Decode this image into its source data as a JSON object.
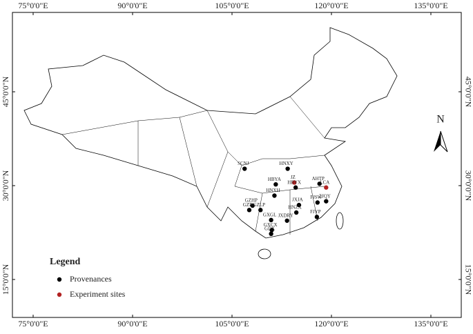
{
  "map": {
    "lon_ticks": [
      {
        "value": 75,
        "label": "75°0'0\"E"
      },
      {
        "value": 90,
        "label": "90°0'0\"E"
      },
      {
        "value": 105,
        "label": "105°0'0\"E"
      },
      {
        "value": 120,
        "label": "120°0'0\"E"
      },
      {
        "value": 135,
        "label": "135°0'0\"E"
      }
    ],
    "lat_ticks": [
      {
        "value": 15,
        "label": "15°0'0\"N"
      },
      {
        "value": 30,
        "label": "30°0'0\"N"
      },
      {
        "value": 45,
        "label": "45°0'0\"N"
      }
    ],
    "north": "N",
    "legend": {
      "title": "Legend",
      "items": [
        {
          "label": "Provenances",
          "color": "#000000"
        },
        {
          "label": "Experiment sites",
          "color": "#b22222"
        }
      ]
    },
    "points": [
      {
        "label": "SCNJ",
        "lon": 106.9,
        "lat": 32.7,
        "kind": 0
      },
      {
        "label": "HNXY",
        "lon": 113.4,
        "lat": 32.7,
        "kind": 0
      },
      {
        "label": "HBYA",
        "lon": 111.6,
        "lat": 30.2,
        "kind": 0
      },
      {
        "label": "JZ",
        "lon": 114.4,
        "lat": 30.5,
        "kind": 1
      },
      {
        "label": "HBYX",
        "lon": 114.6,
        "lat": 29.7,
        "kind": 0
      },
      {
        "label": "AHTP",
        "lon": 118.2,
        "lat": 30.3,
        "kind": 0
      },
      {
        "label": "LCA",
        "lon": 119.2,
        "lat": 29.7,
        "kind": 1
      },
      {
        "label": "HNXH",
        "lon": 111.4,
        "lat": 28.4,
        "kind": 0
      },
      {
        "label": "GZHP",
        "lon": 108.1,
        "lat": 26.8,
        "kind": 0
      },
      {
        "label": "GZD",
        "lon": 107.6,
        "lat": 26.1,
        "kind": 0
      },
      {
        "label": "GZLP",
        "lon": 109.3,
        "lat": 26.1,
        "kind": 0
      },
      {
        "label": "ZJQY",
        "lon": 119.2,
        "lat": 27.5,
        "kind": 0
      },
      {
        "label": "FJSW",
        "lon": 117.9,
        "lat": 27.3,
        "kind": 0
      },
      {
        "label": "JXJA",
        "lon": 115.1,
        "lat": 26.9,
        "kind": 0
      },
      {
        "label": "HNZX",
        "lon": 114.7,
        "lat": 25.7,
        "kind": 0
      },
      {
        "label": "FJYP",
        "lon": 117.8,
        "lat": 25.0,
        "kind": 0
      },
      {
        "label": "GXGL",
        "lon": 110.9,
        "lat": 24.5,
        "kind": 0
      },
      {
        "label": "JXDRY",
        "lon": 113.3,
        "lat": 24.4,
        "kind": 0
      },
      {
        "label": "GXCX",
        "lon": 111.0,
        "lat": 22.9,
        "kind": 0
      },
      {
        "label": "GDX",
        "lon": 110.9,
        "lat": 22.3,
        "kind": 0
      }
    ]
  }
}
